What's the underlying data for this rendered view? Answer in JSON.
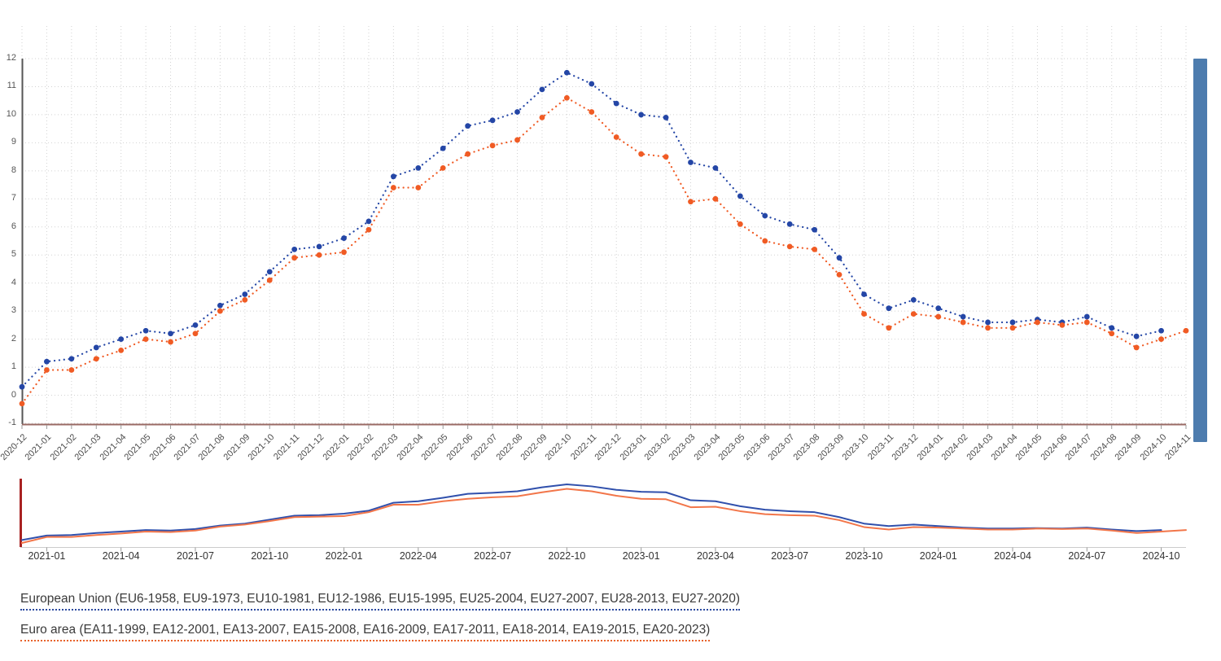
{
  "chart_data": {
    "type": "line",
    "style": "dotted-lines-with-round-markers",
    "title": "",
    "xlabel": "",
    "ylabel": "",
    "ylim": [
      -1,
      12
    ],
    "grid": true,
    "legend_position": "bottom",
    "y_ticks": [
      12,
      11,
      10,
      9,
      8,
      7,
      6,
      5,
      4,
      3,
      2,
      1,
      0,
      -1
    ],
    "x": [
      "2020-12",
      "2021-01",
      "2021-02",
      "2021-03",
      "2021-04",
      "2021-05",
      "2021-06",
      "2021-07",
      "2021-08",
      "2021-09",
      "2021-10",
      "2021-11",
      "2021-12",
      "2022-01",
      "2022-02",
      "2022-03",
      "2022-04",
      "2022-05",
      "2022-06",
      "2022-07",
      "2022-08",
      "2022-09",
      "2022-10",
      "2022-11",
      "2022-12",
      "2023-01",
      "2023-02",
      "2023-03",
      "2023-04",
      "2023-05",
      "2023-06",
      "2023-07",
      "2023-08",
      "2023-09",
      "2023-10",
      "2023-11",
      "2023-12",
      "2024-01",
      "2024-02",
      "2024-03",
      "2024-04",
      "2024-05",
      "2024-06",
      "2024-07",
      "2024-08",
      "2024-09",
      "2024-10",
      "2024-11"
    ],
    "series": [
      {
        "name": "European Union",
        "color": "#2446a6",
        "values": [
          0.3,
          1.2,
          1.3,
          1.7,
          2.0,
          2.3,
          2.2,
          2.5,
          3.2,
          3.6,
          4.4,
          5.2,
          5.3,
          5.6,
          6.2,
          7.8,
          8.1,
          8.8,
          9.6,
          9.8,
          10.1,
          10.9,
          11.5,
          11.1,
          10.4,
          10.0,
          9.9,
          8.3,
          8.1,
          7.1,
          6.4,
          6.1,
          5.9,
          4.9,
          3.6,
          3.1,
          3.4,
          3.1,
          2.8,
          2.6,
          2.6,
          2.7,
          2.6,
          2.8,
          2.4,
          2.1,
          2.3,
          null
        ]
      },
      {
        "name": "Euro area",
        "color": "#f05b24",
        "values": [
          -0.3,
          0.9,
          0.9,
          1.3,
          1.6,
          2.0,
          1.9,
          2.2,
          3.0,
          3.4,
          4.1,
          4.9,
          5.0,
          5.1,
          5.9,
          7.4,
          7.4,
          8.1,
          8.6,
          8.9,
          9.1,
          9.9,
          10.6,
          10.1,
          9.2,
          8.6,
          8.5,
          6.9,
          7.0,
          6.1,
          5.5,
          5.3,
          5.2,
          4.3,
          2.9,
          2.4,
          2.9,
          2.8,
          2.6,
          2.4,
          2.4,
          2.6,
          2.5,
          2.6,
          2.2,
          1.7,
          2.0,
          2.3
        ]
      }
    ],
    "navigator": {
      "labels": [
        "2021-01",
        "2021-04",
        "2021-07",
        "2021-10",
        "2022-01",
        "2022-04",
        "2022-07",
        "2022-10",
        "2023-01",
        "2023-04",
        "2023-07",
        "2023-10",
        "2024-01",
        "2024-04",
        "2024-07",
        "2024-10"
      ],
      "month_indices": [
        1,
        4,
        7,
        10,
        13,
        16,
        19,
        22,
        25,
        28,
        31,
        34,
        37,
        40,
        43,
        46
      ]
    }
  },
  "legend": {
    "eu_label": "European Union (EU6-1958, EU9-1973, EU10-1981, EU12-1986, EU15-1995, EU25-2004, EU27-2007, EU28-2013, EU27-2020)",
    "ea_label": "Euro area (EA11-1999, EA12-2001, EA13-2007, EA15-2008, EA16-2009, EA17-2011, EA18-2014, EA19-2015, EA20-2023)"
  },
  "colors": {
    "eu_series": "#2446a6",
    "ea_series": "#f05b24",
    "eu_nav_line": "#3050ac",
    "ea_nav_line": "#f2764a",
    "scrollbar": "#4d7cae",
    "grid": "#d2d2d2",
    "y_axis_line": "#565656",
    "x_axis_line": "#9a6a64",
    "nav_axis_line": "#cccccc",
    "nav_red_line": "#a82222",
    "tick": "#999999",
    "axis_label": "#555555",
    "nav_label": "#333333",
    "legend_text": "#3a3a3a",
    "eu_legend_underline": "#2b4aa0",
    "ea_legend_underline": "#e8622a"
  }
}
